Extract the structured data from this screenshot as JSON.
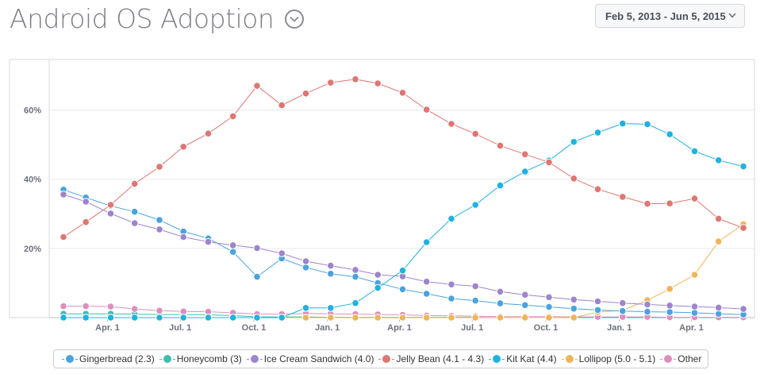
{
  "header": {
    "title": "Android OS Adoption",
    "title_menu_icon": "chevron-down-icon",
    "date_range": "Feb 5, 2013 - Jun 5, 2015",
    "date_range_icon": "chevron-down-icon"
  },
  "chart_data": {
    "type": "line",
    "title": "Android OS Adoption",
    "x": [
      "2013-02-05",
      "2013-03-05",
      "2013-04-05",
      "2013-05-05",
      "2013-06-05",
      "2013-07-05",
      "2013-08-05",
      "2013-09-05",
      "2013-10-05",
      "2013-11-05",
      "2013-12-05",
      "2014-01-05",
      "2014-02-05",
      "2014-03-05",
      "2014-04-05",
      "2014-05-05",
      "2014-06-05",
      "2014-07-05",
      "2014-08-05",
      "2014-09-05",
      "2014-10-05",
      "2014-11-05",
      "2014-12-05",
      "2015-01-05",
      "2015-02-05",
      "2015-03-05",
      "2015-04-05",
      "2015-05-05",
      "2015-06-05"
    ],
    "x_ticks": [
      {
        "label": "Apr. 1",
        "date": "2013-04-01"
      },
      {
        "label": "Jul. 1",
        "date": "2013-07-01"
      },
      {
        "label": "Oct. 1",
        "date": "2013-10-01"
      },
      {
        "label": "Jan. 1",
        "date": "2014-01-01"
      },
      {
        "label": "Apr. 1",
        "date": "2014-04-01"
      },
      {
        "label": "Jul. 1",
        "date": "2014-07-01"
      },
      {
        "label": "Oct. 1",
        "date": "2014-10-01"
      },
      {
        "label": "Jan. 1",
        "date": "2015-01-01"
      },
      {
        "label": "Apr. 1",
        "date": "2015-04-01"
      }
    ],
    "y_ticks": [
      {
        "label": "20%",
        "value": 20
      },
      {
        "label": "40%",
        "value": 40
      },
      {
        "label": "60%",
        "value": 60
      }
    ],
    "ylim": [
      0,
      70
    ],
    "grid": "horizontal",
    "legend_position": "bottom",
    "series": [
      {
        "name": "Gingerbread (2.3)",
        "color": "#4aa3df",
        "values": [
          37.0,
          34.7,
          32.3,
          30.6,
          28.2,
          24.9,
          22.9,
          19.0,
          11.8,
          17.1,
          14.5,
          12.7,
          11.8,
          10.0,
          8.2,
          6.9,
          5.5,
          4.9,
          4.1,
          3.6,
          3.1,
          2.6,
          2.2,
          1.9,
          1.7,
          1.6,
          1.4,
          1.1,
          0.9
        ]
      },
      {
        "name": "Honeycomb (3)",
        "color": "#3ebdb1",
        "values": [
          1.1,
          1.1,
          1.1,
          1.0,
          0.9,
          0.9,
          0.8,
          0.6,
          0.2,
          0.2,
          0.2,
          0.1,
          0.1,
          0.1,
          0.1,
          0.1,
          0.1,
          0.1,
          0.0,
          0.0,
          0.0,
          0.0,
          0.0,
          0.0,
          0.0,
          0.0,
          0.0,
          0.0,
          0.0
        ]
      },
      {
        "name": "Ice Cream Sandwich (4.0)",
        "color": "#9d85cc",
        "values": [
          35.6,
          33.5,
          30.1,
          27.3,
          25.5,
          23.3,
          21.9,
          20.9,
          20.1,
          18.6,
          16.3,
          15.0,
          13.8,
          12.4,
          11.9,
          10.4,
          9.6,
          9.1,
          7.5,
          6.6,
          5.9,
          5.2,
          4.7,
          4.2,
          3.8,
          3.5,
          3.2,
          2.9,
          2.5
        ]
      },
      {
        "name": "Jelly Bean (4.1 - 4.3)",
        "color": "#de7672",
        "values": [
          23.3,
          27.6,
          32.6,
          38.7,
          43.6,
          49.4,
          53.2,
          58.2,
          67.0,
          61.4,
          64.8,
          67.9,
          68.9,
          67.7,
          65.0,
          60.1,
          56.0,
          53.1,
          49.7,
          47.2,
          44.9,
          40.2,
          37.1,
          34.9,
          32.9,
          33.0,
          34.4,
          28.6,
          25.9
        ]
      },
      {
        "name": "Kit Kat (4.4)",
        "color": "#21b1e0",
        "values": [
          0,
          0,
          0,
          0,
          0,
          0,
          0,
          0,
          0,
          0,
          2.8,
          2.8,
          4.2,
          8.6,
          13.6,
          21.8,
          28.6,
          32.6,
          38.2,
          42.2,
          45.4,
          50.8,
          53.5,
          56.1,
          55.9,
          53.0,
          48.1,
          45.5,
          43.7
        ]
      },
      {
        "name": "Lollipop (5.0 - 5.1)",
        "color": "#eeb45c",
        "values": [
          0,
          0,
          0,
          0,
          0,
          0,
          0,
          0,
          0,
          0,
          0,
          0,
          0,
          0,
          0,
          0,
          0,
          0,
          0,
          0,
          0,
          0,
          1.6,
          2.1,
          5.0,
          8.3,
          12.4,
          22.0,
          27.0
        ]
      },
      {
        "name": "Other",
        "color": "#dd8fbb",
        "values": [
          3.3,
          3.3,
          3.2,
          2.5,
          2.0,
          1.8,
          1.7,
          1.4,
          1.0,
          1.0,
          1.2,
          1.1,
          1.0,
          0.9,
          0.8,
          0.6,
          0.5,
          0.4,
          0.3,
          0.3,
          0.3,
          0.2,
          0.2,
          0.2,
          0.2,
          0.1,
          0.1,
          0.1,
          0.1
        ]
      }
    ]
  }
}
